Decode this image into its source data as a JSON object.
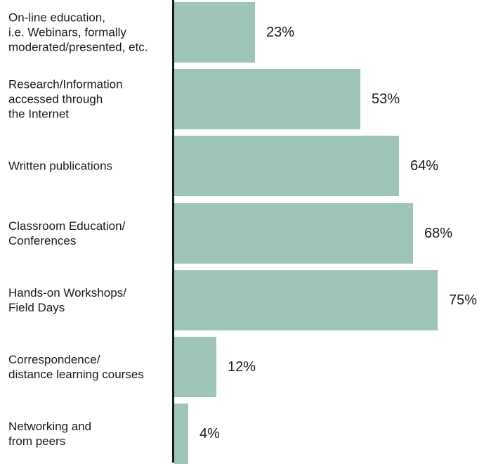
{
  "chart_data": {
    "type": "bar",
    "orientation": "horizontal",
    "categories": [
      "On-line education,\ni.e. Webinars, formally\nmoderated/presented, etc.",
      "Research/Information\naccessed through\nthe Internet",
      "Written publications",
      "Classroom Education/\nConferences",
      "Hands-on Workshops/\nField Days",
      "Correspondence/\ndistance learning courses",
      "Networking and\nfrom peers"
    ],
    "values": [
      23,
      53,
      64,
      68,
      75,
      12,
      4
    ],
    "value_labels": [
      "23%",
      "53%",
      "64%",
      "68%",
      "75%",
      "12%",
      "4%"
    ],
    "xlim": [
      0,
      75
    ],
    "grid": false,
    "legend": "none",
    "bar_color": "#9ec5b6",
    "axis_color": "#1a1a1a"
  }
}
